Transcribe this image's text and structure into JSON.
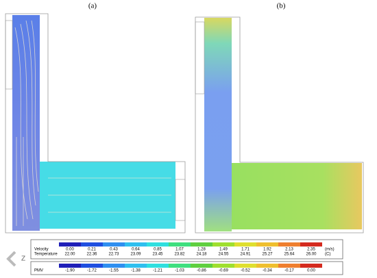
{
  "panels": [
    {
      "label": "(a)"
    },
    {
      "label": "(b)"
    }
  ],
  "axis_icon": "Z",
  "legend_top": {
    "colors": [
      "#1f1fb8",
      "#1f4fe0",
      "#2f8ff0",
      "#2fbfef",
      "#2fdfdf",
      "#3fdf7f",
      "#5fcf3f",
      "#9fdf2f",
      "#dfdf2f",
      "#efbf2f",
      "#ef7f2f",
      "#d42a1e"
    ],
    "rows": [
      {
        "name": "Velocity",
        "unit": "(m/s)",
        "values": [
          "0.00",
          "0.21",
          "0.43",
          "0.64",
          "0.85",
          "1.07",
          "1.28",
          "1.49",
          "1.71",
          "1.92",
          "2.13",
          "2.35"
        ]
      },
      {
        "name": "Temperature",
        "unit": "(C)",
        "values": [
          "22.00",
          "22.36",
          "22.73",
          "23.09",
          "23.45",
          "23.82",
          "24.18",
          "24.55",
          "24.91",
          "25.27",
          "25.64",
          "26.00"
        ]
      }
    ]
  },
  "legend_bottom": {
    "colors": [
      "#1f1fb8",
      "#1f4fe0",
      "#2f8ff0",
      "#2fbfef",
      "#2fdfdf",
      "#3fdf7f",
      "#5fcf3f",
      "#9fdf2f",
      "#dfdf2f",
      "#efbf2f",
      "#ef7f2f",
      "#d42a1e"
    ],
    "rows": [
      {
        "name": "PMV",
        "values": [
          "-1.90",
          "-1.72",
          "-1.55",
          "-1.38",
          "-1.21",
          "-1.03",
          "-0.86",
          "-0.69",
          "-0.52",
          "-0.34",
          "-0.17",
          "0.00"
        ]
      }
    ]
  }
}
